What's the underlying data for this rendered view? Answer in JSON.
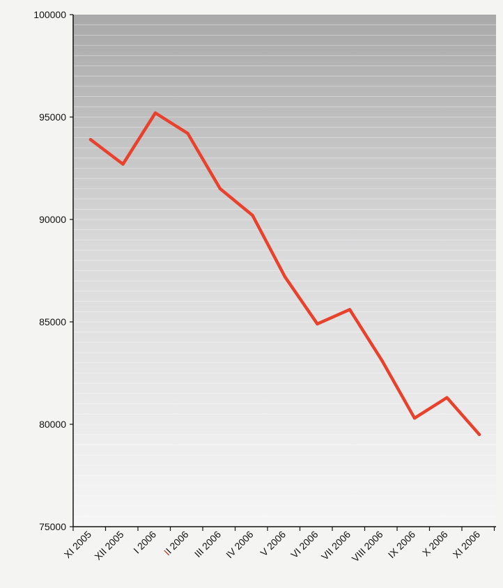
{
  "chart_data": {
    "type": "line",
    "title": "",
    "xlabel": "",
    "ylabel": "",
    "categories": [
      "XI 2005",
      "XII 2005",
      "I 2006",
      "II 2006",
      "III 2006",
      "IV 2006",
      "V 2006",
      "VI 2006",
      "VII 2006",
      "VIII 2006",
      "IX 2006",
      "X 2006",
      "XI 2006"
    ],
    "ylim": [
      75000,
      100000
    ],
    "yticks": [
      "100000",
      "95000",
      "90000",
      "85000",
      "80000",
      "75000"
    ],
    "grid": true,
    "legend": "none",
    "series": [
      {
        "values": [
          93900,
          92700,
          95200,
          94200,
          91500,
          90200,
          87200,
          84900,
          85600,
          83100,
          80300,
          81300,
          79500
        ],
        "color": "#e8412c"
      }
    ]
  },
  "colors": {
    "line": "#e8412c",
    "highlight_tick": "#c0392b",
    "axis": "#111111",
    "plot_top": "#a9a9a9",
    "plot_bottom": "#f6f6f6"
  }
}
